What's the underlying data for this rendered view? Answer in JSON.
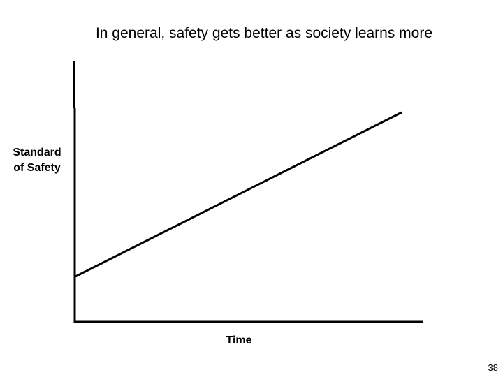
{
  "slide": {
    "title": "In general, safety gets better as society learns more",
    "page_number": "38"
  },
  "chart_data": {
    "type": "line",
    "title": "In general, safety gets better as society learns more",
    "xlabel": "Time",
    "ylabel_lines": [
      "Standard",
      "of Safety"
    ],
    "series": [
      {
        "trend": "increasing linear",
        "x": [
          0,
          1
        ],
        "y": [
          0,
          1
        ]
      }
    ],
    "grid": false,
    "legend": "none",
    "colors": {
      "line": "#000000",
      "axes": "#000000"
    }
  }
}
